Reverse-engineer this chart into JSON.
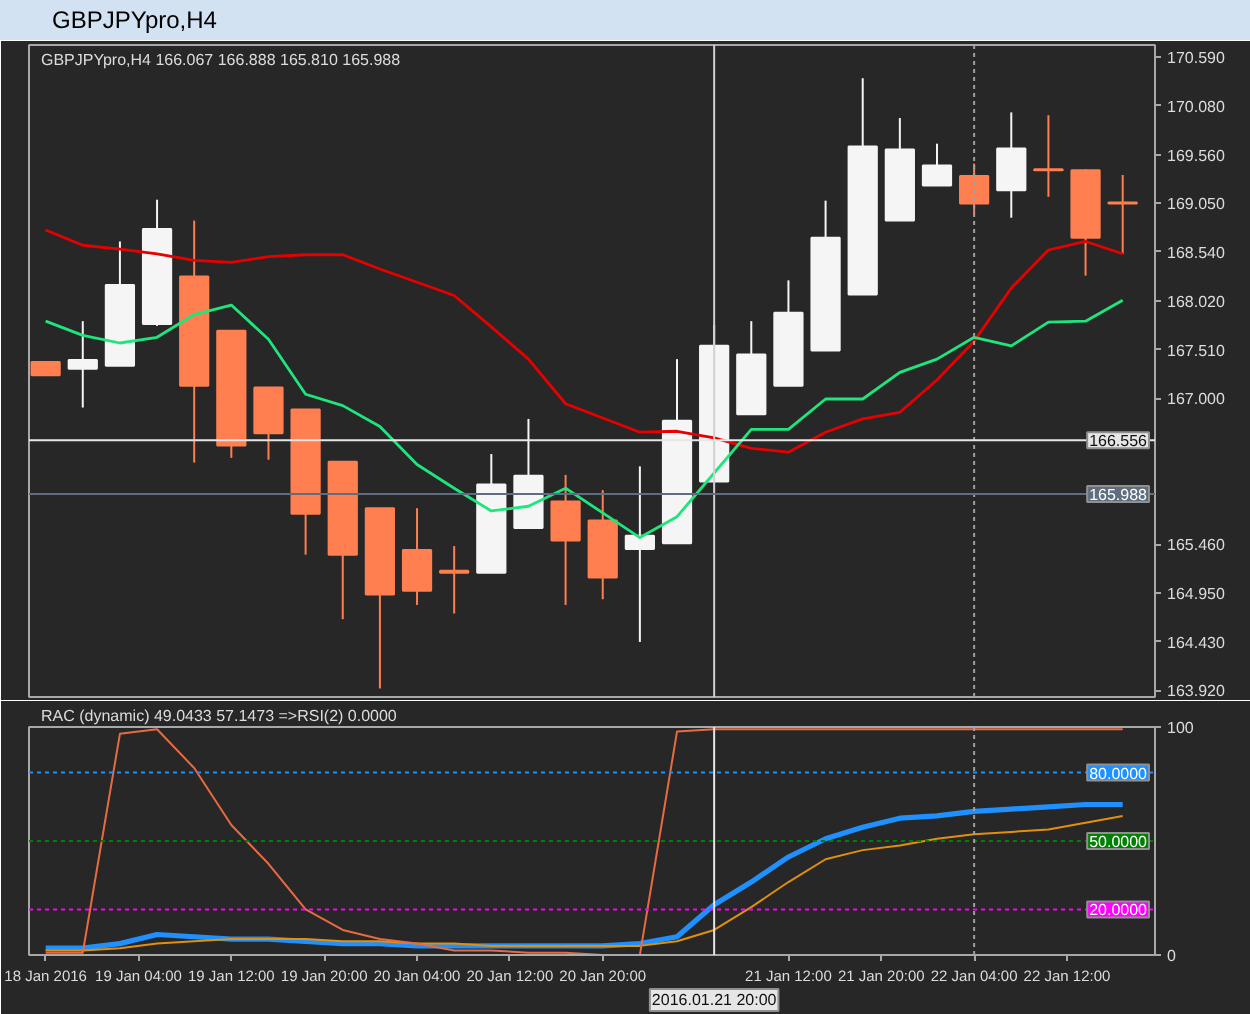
{
  "chart_data": [
    {
      "type": "candlestick",
      "title": "GBPJPYpro,H4",
      "subtitle": "GBPJPYpro,H4  166.067 166.888 165.810 165.988",
      "x": [
        "2016-01-18T20:00",
        "2016-01-18T23:12",
        "2016-01-19T02:24",
        "2016-01-19T05:36",
        "2016-01-19T08:48",
        "2016-01-19T12:00",
        "2016-01-19T15:12",
        "2016-01-19T18:24",
        "2016-01-19T21:36",
        "2016-01-20T00:48",
        "2016-01-20T04:00",
        "2016-01-20T07:12",
        "2016-01-20T10:24",
        "2016-01-20T13:36",
        "2016-01-20T16:48",
        "2016-01-20T20:00",
        "2016-01-20T23:12",
        "2016-01-21T02:24",
        "2016-01-21T05:36",
        "2016-01-21T08:48",
        "2016-01-21T12:00",
        "2016-01-21T15:12",
        "2016-01-21T18:24",
        "2016-01-21T21:36",
        "2016-01-22T00:48",
        "2016-01-22T04:00",
        "2016-01-22T07:12",
        "2016-01-22T10:24",
        "2016-01-22T13:36",
        "2016-01-22T16:48"
      ],
      "ohlc": [
        [
          167.38,
          167.38,
          167.24,
          167.24
        ],
        [
          167.31,
          167.81,
          166.9,
          167.4
        ],
        [
          167.34,
          168.65,
          167.34,
          168.19
        ],
        [
          167.78,
          169.09,
          167.76,
          168.78
        ],
        [
          168.28,
          168.87,
          166.32,
          167.13
        ],
        [
          167.71,
          167.71,
          166.37,
          166.5
        ],
        [
          167.11,
          167.11,
          166.35,
          166.63
        ],
        [
          166.88,
          166.88,
          165.35,
          165.78
        ],
        [
          166.33,
          166.33,
          164.67,
          165.35
        ],
        [
          165.84,
          165.84,
          163.94,
          164.93
        ],
        [
          165.4,
          165.84,
          164.82,
          164.97
        ],
        [
          165.18,
          165.44,
          164.73,
          165.16
        ],
        [
          165.16,
          166.41,
          165.16,
          166.09
        ],
        [
          165.63,
          166.78,
          165.63,
          166.18
        ],
        [
          165.91,
          166.19,
          164.82,
          165.5
        ],
        [
          165.71,
          166.03,
          164.88,
          165.11
        ],
        [
          165.41,
          166.28,
          164.43,
          165.55
        ],
        [
          165.47,
          167.41,
          165.47,
          166.76
        ],
        [
          166.12,
          167.77,
          166.12,
          167.55
        ],
        [
          166.83,
          167.81,
          166.83,
          167.46
        ],
        [
          167.13,
          168.24,
          167.13,
          167.9
        ],
        [
          167.5,
          169.08,
          167.5,
          168.69
        ],
        [
          168.09,
          170.37,
          168.09,
          169.65
        ],
        [
          168.87,
          169.95,
          168.87,
          169.62
        ],
        [
          169.24,
          169.68,
          169.24,
          169.45
        ],
        [
          169.34,
          169.47,
          168.94,
          169.05
        ],
        [
          169.19,
          170.01,
          168.9,
          169.63
        ],
        [
          169.41,
          169.98,
          169.12,
          169.4
        ],
        [
          169.4,
          169.41,
          168.29,
          168.69
        ],
        [
          169.06,
          169.35,
          168.52,
          169.05
        ]
      ],
      "colors": [
        "#ff7f50",
        "#f5f5f5",
        "#f5f5f5",
        "#f5f5f5",
        "#ff7f50",
        "#ff7f50",
        "#ff7f50",
        "#ff7f50",
        "#ff7f50",
        "#ff7f50",
        "#ff7f50",
        "#ff7f50",
        "#f5f5f5",
        "#f5f5f5",
        "#ff7f50",
        "#ff7f50",
        "#f5f5f5",
        "#f5f5f5",
        "#f5f5f5",
        "#f5f5f5",
        "#f5f5f5",
        "#f5f5f5",
        "#f5f5f5",
        "#f5f5f5",
        "#f5f5f5",
        "#ff7f50",
        "#f5f5f5",
        "#ff7f50",
        "#ff7f50",
        "#ff7f50"
      ],
      "series": [
        {
          "type": "line",
          "color": "#e60000",
          "values": [
            168.77,
            168.61,
            168.57,
            168.52,
            168.45,
            168.43,
            168.49,
            168.51,
            168.51,
            168.36,
            168.22,
            168.08,
            167.75,
            167.41,
            166.94,
            166.79,
            166.64,
            166.65,
            166.58,
            166.47,
            166.43,
            166.64,
            166.78,
            166.85,
            167.19,
            167.6,
            168.16,
            168.56,
            168.65,
            168.52
          ]
        },
        {
          "type": "line",
          "color": "#1ee67c",
          "values": [
            167.81,
            167.66,
            167.58,
            167.64,
            167.88,
            167.98,
            167.62,
            167.04,
            166.92,
            166.7,
            166.3,
            166.05,
            165.81,
            165.86,
            166.05,
            165.79,
            165.53,
            165.75,
            166.21,
            166.67,
            166.67,
            166.99,
            166.99,
            167.27,
            167.41,
            167.64,
            167.55,
            167.8,
            167.81,
            168.03
          ]
        }
      ],
      "xlim": [
        "2016-01-18T18:34",
        "2016-01-22T19:35"
      ],
      "ylim": [
        163.85,
        170.72
      ],
      "yticks": [
        {
          "value": 163.92,
          "label": "163.920"
        },
        {
          "value": 164.43,
          "label": "164.430"
        },
        {
          "value": 164.95,
          "label": "164.950"
        },
        {
          "value": 165.46,
          "label": "165.460"
        },
        {
          "value": 167.0,
          "label": "167.000"
        },
        {
          "value": 167.51,
          "label": "167.510"
        },
        {
          "value": 168.02,
          "label": "168.020"
        },
        {
          "value": 168.54,
          "label": "168.540"
        },
        {
          "value": 169.05,
          "label": "169.050"
        },
        {
          "value": 169.56,
          "label": "169.560"
        },
        {
          "value": 170.08,
          "label": "170.080"
        },
        {
          "value": 170.59,
          "label": "170.590"
        }
      ],
      "ref_lines": [
        {
          "axis": "x",
          "value": "2016-01-21T05:36",
          "color": "#d0d0d0"
        },
        {
          "axis": "x",
          "value": "2016-01-22T04:00",
          "color": "#a0a0a0",
          "line_style": "dotted"
        },
        {
          "axis": "y",
          "value": 166.556,
          "label": "166.556",
          "color": "#e6e6e6"
        },
        {
          "axis": "y",
          "value": 165.988,
          "label": "165.988",
          "color": "#5e6e7e"
        }
      ],
      "grid": false,
      "tick_labels": "y"
    },
    {
      "type": "line",
      "title": "RAC (dynamic) 49.0433 57.1473  =>RSI(2) 0.0000",
      "x": [
        "2016-01-18T20:00",
        "2016-01-18T23:12",
        "2016-01-19T02:24",
        "2016-01-19T05:36",
        "2016-01-19T08:48",
        "2016-01-19T12:00",
        "2016-01-19T15:12",
        "2016-01-19T18:24",
        "2016-01-19T21:36",
        "2016-01-20T00:48",
        "2016-01-20T04:00",
        "2016-01-20T07:12",
        "2016-01-20T10:24",
        "2016-01-20T13:36",
        "2016-01-20T16:48",
        "2016-01-20T20:00",
        "2016-01-20T23:12",
        "2016-01-21T02:24",
        "2016-01-21T05:36",
        "2016-01-21T08:48",
        "2016-01-21T12:00",
        "2016-01-21T15:12",
        "2016-01-21T18:24",
        "2016-01-21T21:36",
        "2016-01-22T00:48",
        "2016-01-22T04:00",
        "2016-01-22T07:12",
        "2016-01-22T10:24",
        "2016-01-22T13:36",
        "2016-01-22T16:48"
      ],
      "series": [
        {
          "color": "#1e90ff",
          "values": [
            3,
            3,
            5,
            9,
            8,
            7,
            7,
            6,
            5,
            5,
            4,
            4,
            4,
            4,
            4,
            4,
            5,
            8,
            22,
            32,
            43,
            51,
            56,
            60,
            61,
            63,
            64,
            65,
            66,
            66
          ]
        },
        {
          "color": "#e0900c",
          "values": [
            2,
            2,
            3,
            5,
            6,
            7,
            7,
            7,
            6,
            6,
            5,
            5,
            4,
            4,
            4,
            4,
            4,
            6,
            11,
            21,
            32,
            42,
            46,
            48,
            51,
            53,
            54,
            55,
            58,
            61
          ]
        },
        {
          "color": "#e86a42",
          "values": [
            1,
            1,
            97,
            99,
            82,
            57,
            40,
            20,
            11,
            7,
            5,
            2,
            2,
            1,
            1,
            0,
            0,
            98,
            99,
            99,
            99,
            99,
            99,
            99,
            99,
            99,
            99,
            99,
            99,
            99
          ]
        }
      ],
      "xlim": [
        "2016-01-18T18:34",
        "2016-01-22T19:35"
      ],
      "ylim": [
        0,
        100
      ],
      "xticks": [
        {
          "value": "2016-01-18T20:00",
          "label": "18 Jan 2016"
        },
        {
          "value": "2016-01-19T04:00",
          "label": "19 Jan 04:00"
        },
        {
          "value": "2016-01-19T12:00",
          "label": "19 Jan 12:00"
        },
        {
          "value": "2016-01-19T20:00",
          "label": "19 Jan 20:00"
        },
        {
          "value": "2016-01-20T04:00",
          "label": "20 Jan 04:00"
        },
        {
          "value": "2016-01-20T12:00",
          "label": "20 Jan 12:00"
        },
        {
          "value": "2016-01-20T20:00",
          "label": "20 Jan 20:00"
        },
        {
          "value": "2016-01-21T12:00",
          "label": "21 Jan 12:00"
        },
        {
          "value": "2016-01-21T20:00",
          "label": "21 Jan 20:00"
        },
        {
          "value": "2016-01-22T04:00",
          "label": "22 Jan 04:00"
        },
        {
          "value": "2016-01-22T12:00",
          "label": "22 Jan 12:00"
        }
      ],
      "yticks": [
        0,
        100
      ],
      "ref_lines": [
        {
          "axis": "y",
          "value": 80,
          "label": "80.0000",
          "color": "#1e90ff",
          "line_style": "dotted"
        },
        {
          "axis": "y",
          "value": 50,
          "label": "50.0000",
          "color": "#008000",
          "line_style": "dotted"
        },
        {
          "axis": "y",
          "value": 20,
          "label": "20.0000",
          "color": "#ff00ff",
          "line_style": "dotted"
        },
        {
          "axis": "x",
          "value": "2016-01-21T05:36",
          "label": "2016.01.21 20:00",
          "color": "#e6e6e6"
        },
        {
          "axis": "x",
          "value": "2016-01-22T04:00",
          "color": "#a0a0a0",
          "line_style": "dotted"
        }
      ],
      "grid": false
    }
  ]
}
